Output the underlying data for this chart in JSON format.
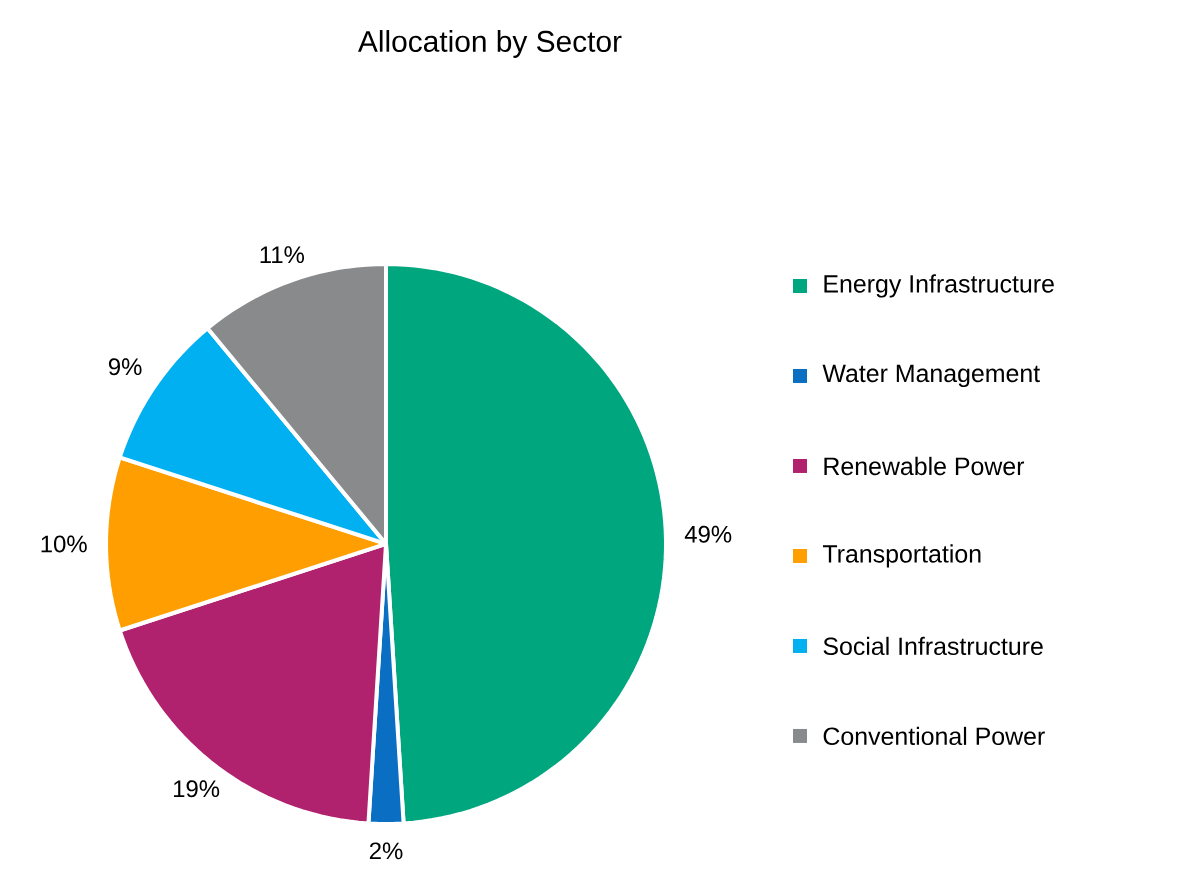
{
  "chart_data": {
    "type": "pie",
    "title": "Allocation by Sector",
    "categories": [
      "Energy Infrastructure",
      "Water Management",
      "Renewable Power",
      "Transportation",
      "Social Infrastructure",
      "Conventional Power"
    ],
    "values": [
      49,
      2,
      19,
      10,
      9,
      11
    ],
    "value_labels": [
      "49%",
      "2%",
      "19%",
      "10%",
      "9%",
      "11%"
    ],
    "colors": [
      "#00a67e",
      "#0a6fc2",
      "#b0226e",
      "#ff9e00",
      "#00b0f0",
      "#888a8c"
    ],
    "legend": "right"
  }
}
